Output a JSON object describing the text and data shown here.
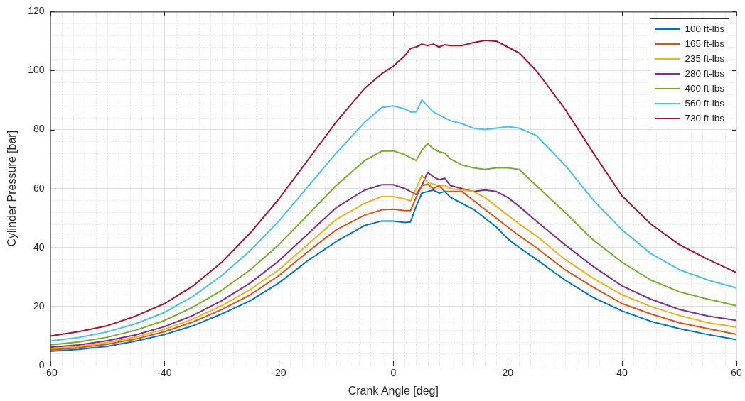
{
  "chart_data": {
    "type": "line",
    "xlabel": "Crank Angle [deg]",
    "ylabel": "Cylinder Pressure [bar]",
    "x": [
      -60,
      -55,
      -50,
      -45,
      -40,
      -35,
      -30,
      -25,
      -20,
      -15,
      -10,
      -5,
      -2,
      0,
      2,
      3,
      4,
      5,
      6,
      7,
      8,
      9,
      10,
      12,
      14,
      16,
      18,
      20,
      22,
      25,
      30,
      35,
      40,
      45,
      50,
      55,
      60
    ],
    "series": [
      {
        "name": "100 ft-lbs",
        "color": "#0072bd",
        "values": [
          4.8,
          5.5,
          6.5,
          8.3,
          10.5,
          13.5,
          17.5,
          22,
          28,
          35.5,
          42,
          47.5,
          49,
          49,
          48.5,
          48.7,
          54,
          58.5,
          59,
          59.5,
          58.5,
          59,
          57,
          55,
          53,
          50,
          47,
          43,
          40,
          36,
          29,
          23,
          18.5,
          15,
          12.5,
          10.5,
          8.8
        ]
      },
      {
        "name": "165 ft-lbs",
        "color": "#d95319",
        "values": [
          5.3,
          6,
          7.2,
          9,
          11.5,
          14.8,
          19,
          24,
          30.5,
          38.5,
          46,
          51,
          52.8,
          53,
          52.5,
          52.5,
          57,
          61,
          61.5,
          60,
          61,
          59,
          59,
          59,
          56,
          53,
          50,
          47,
          44,
          40,
          32.5,
          26.5,
          21,
          17.5,
          14.5,
          12.5,
          10.6
        ]
      },
      {
        "name": "235 ft-lbs",
        "color": "#edb120",
        "values": [
          5.7,
          6.5,
          7.8,
          9.7,
          12.3,
          15.8,
          20.3,
          25.8,
          32.5,
          41,
          49.5,
          55,
          57.3,
          57.3,
          56.5,
          55.8,
          60,
          64.5,
          62,
          61.5,
          61,
          61,
          60,
          59.5,
          59,
          57,
          54,
          51,
          48,
          44,
          36,
          29.5,
          24,
          20,
          17,
          14.5,
          13
        ]
      },
      {
        "name": "280 ft-lbs",
        "color": "#7e2f8e",
        "values": [
          6.2,
          7,
          8.4,
          10.4,
          13.2,
          17,
          22,
          28,
          35.5,
          44.5,
          53.5,
          59.5,
          61.3,
          61.3,
          60,
          59,
          58,
          61,
          65.5,
          64,
          63,
          63.5,
          61,
          60,
          59,
          59.5,
          59,
          57,
          54,
          49,
          41,
          33.5,
          27,
          22.5,
          19,
          16.8,
          15.3
        ]
      },
      {
        "name": "400 ft-lbs",
        "color": "#77ac30",
        "values": [
          7,
          8,
          9.6,
          12,
          15.3,
          19.8,
          25.5,
          32.5,
          41,
          51,
          61,
          69.5,
          72.7,
          72.8,
          71.5,
          70.5,
          69.5,
          73,
          75.3,
          73.5,
          72.5,
          72,
          70,
          68,
          67,
          66.5,
          67,
          67,
          66.5,
          61,
          52,
          42.5,
          35,
          29,
          25,
          22.5,
          20.3
        ]
      },
      {
        "name": "560 ft-lbs",
        "color": "#4dbeee",
        "values": [
          8.3,
          9.5,
          11.4,
          14.2,
          18,
          23.5,
          30.5,
          39,
          49,
          60.5,
          72,
          82.5,
          87.5,
          88,
          87,
          86,
          86,
          90,
          88,
          86,
          85,
          84,
          83,
          82,
          80.5,
          80,
          80.5,
          81,
          80.5,
          78,
          68,
          56,
          46,
          38,
          32.5,
          29,
          26.3
        ]
      },
      {
        "name": "730 ft-lbs",
        "color": "#a2142f",
        "values": [
          10,
          11.5,
          13.5,
          16.8,
          21,
          27,
          35,
          45,
          56.5,
          69.5,
          82.5,
          94,
          99,
          101.5,
          105,
          107.5,
          108,
          109,
          108.5,
          109,
          108,
          108.8,
          108.5,
          108.5,
          109.5,
          110.2,
          110,
          108,
          106,
          100,
          87,
          72,
          57.5,
          48,
          41,
          36,
          31.5
        ]
      }
    ],
    "xlim": [
      -60,
      60
    ],
    "xticks": [
      -60,
      -40,
      -20,
      0,
      20,
      40,
      60
    ],
    "ylim": [
      0,
      120
    ],
    "yticks": [
      0,
      20,
      40,
      60,
      80,
      100,
      120
    ],
    "grid": true,
    "legend": "top right",
    "marker": "none",
    "line_style": "solid"
  }
}
